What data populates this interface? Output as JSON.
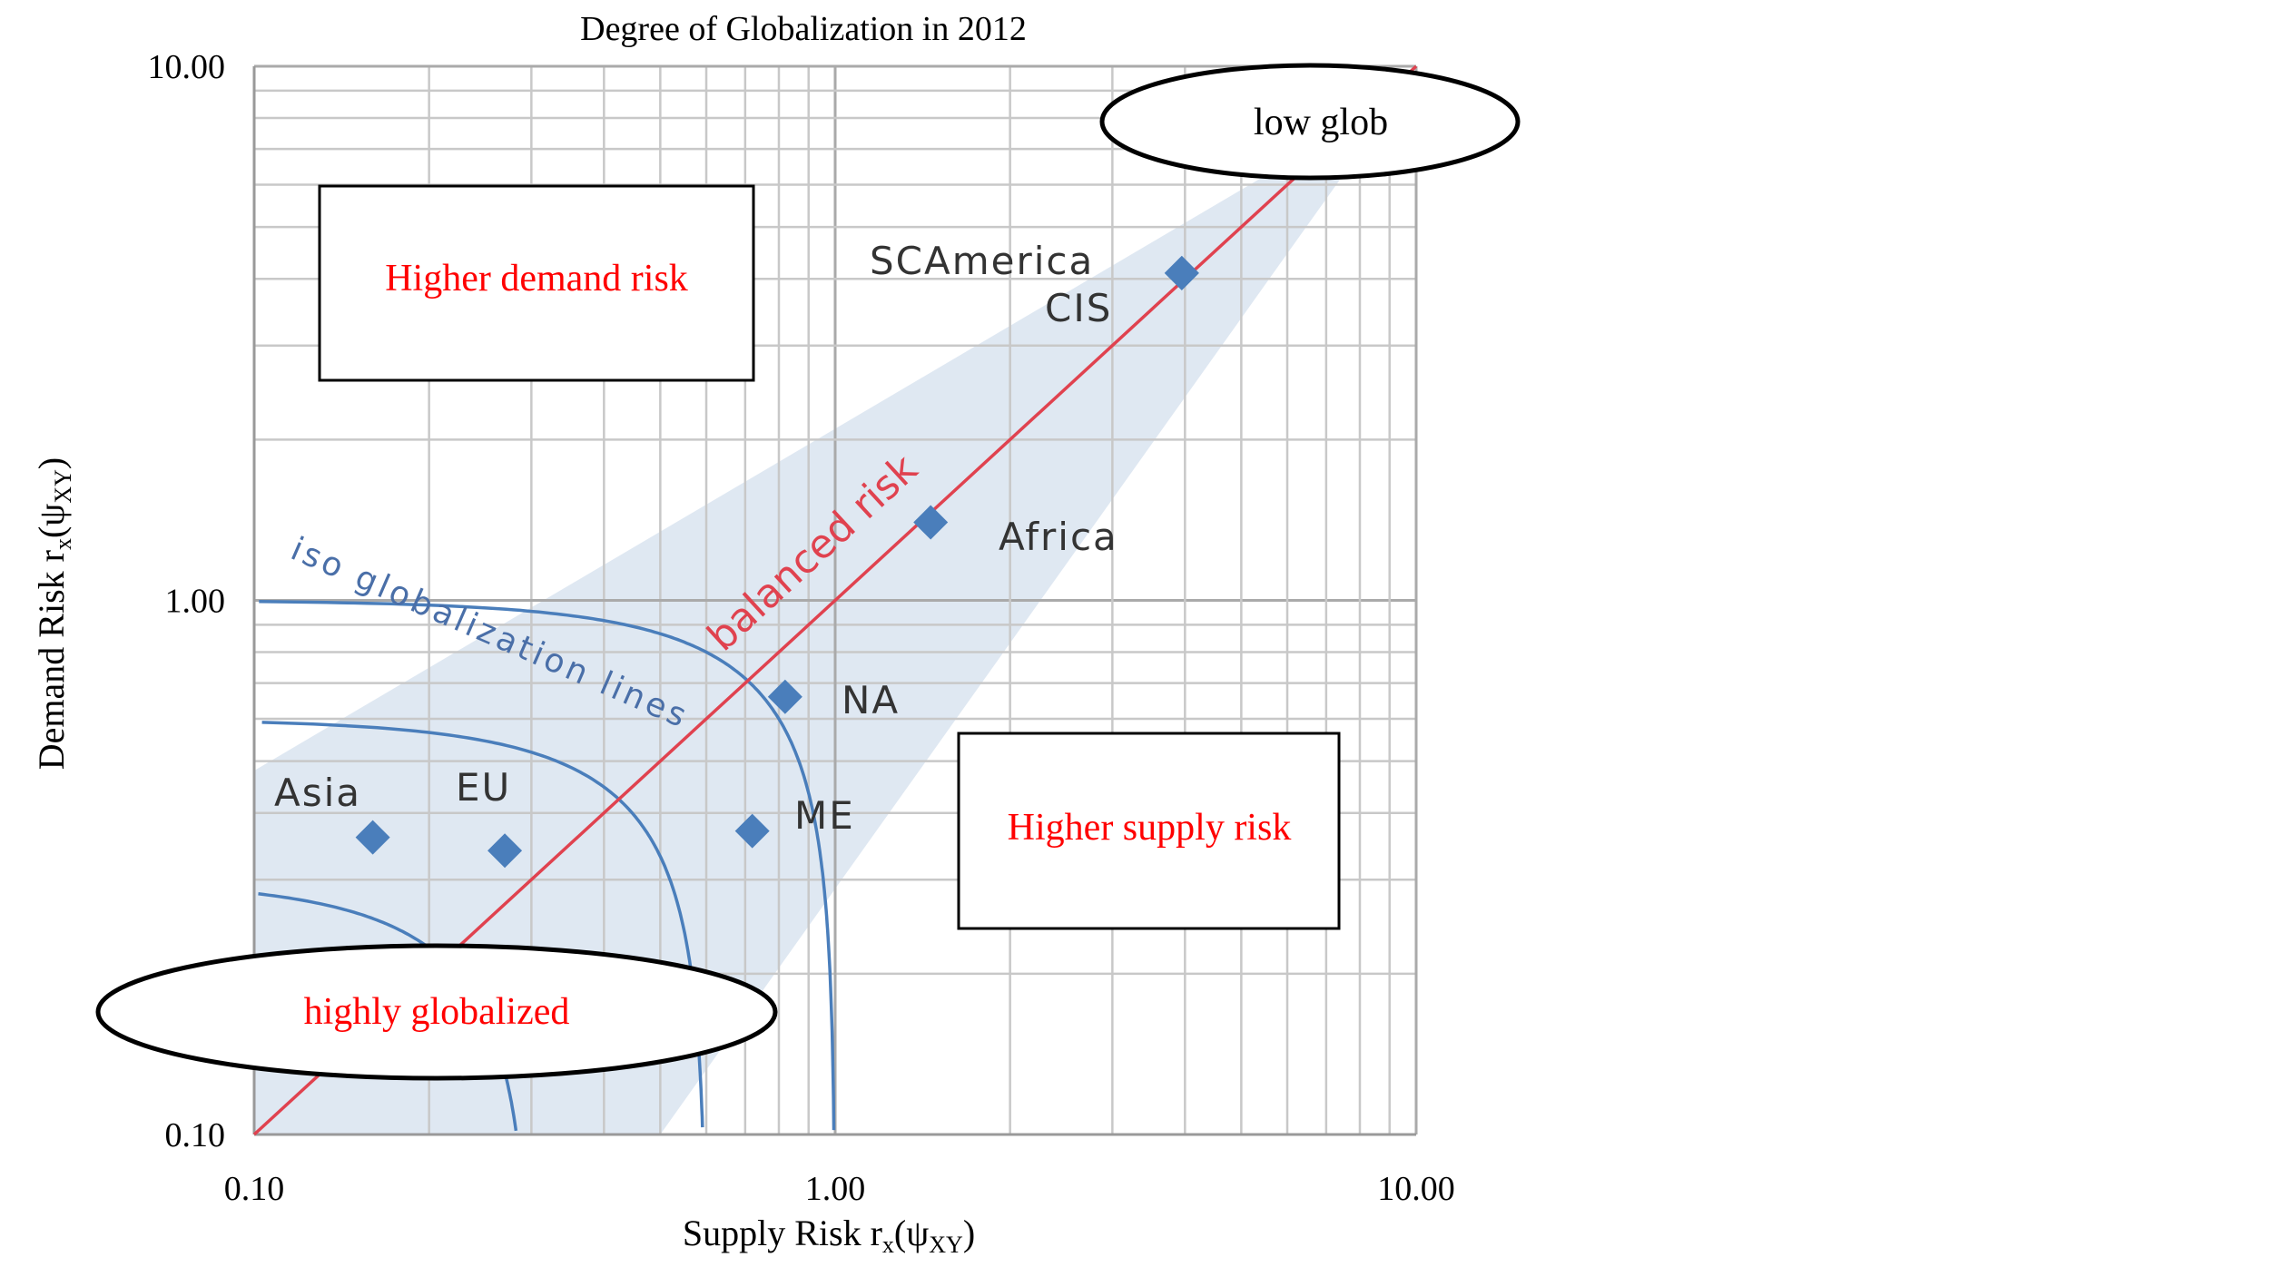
{
  "chart_data": {
    "type": "scatter",
    "title": "Degree of Globalization in 2012",
    "xlabel": {
      "main": "Supply Risk r",
      "sub1": "x",
      "mid": "(ψ",
      "sub2": "XY",
      "end": ")"
    },
    "ylabel": {
      "main": "Demand Risk r",
      "sub1": "x",
      "mid": "(ψ",
      "sub2": "XY",
      "end": ")"
    },
    "xscale": "log",
    "yscale": "log",
    "xlim": [
      0.1,
      10
    ],
    "ylim": [
      0.1,
      10
    ],
    "xticks": [
      "0.10",
      "1.00",
      "10.00"
    ],
    "yticks": [
      "0.10",
      "1.00",
      "10.00"
    ],
    "grid": true,
    "colors": {
      "points": "#4a7ebb",
      "balanced_line": "#e0424f",
      "iso_lines": "#4a7ebb",
      "band": "#dbe5f1",
      "annotation_text": "#ff0000",
      "grid": "#c8c8c8"
    },
    "points": [
      {
        "label": "Asia",
        "x": 0.16,
        "y": 0.36
      },
      {
        "label": "EU",
        "x": 0.27,
        "y": 0.34
      },
      {
        "label": "ME",
        "x": 0.72,
        "y": 0.37
      },
      {
        "label": "NA",
        "x": 0.82,
        "y": 0.66
      },
      {
        "label": "Africa",
        "x": 1.46,
        "y": 1.4
      },
      {
        "label": "SCAmerica",
        "x": 3.95,
        "y": 4.1
      },
      {
        "label": "CIS",
        "x": 3.95,
        "y": 4.1
      }
    ],
    "balanced_line": {
      "label": "balanced risk",
      "from": [
        0.1,
        0.1
      ],
      "to": [
        10,
        10
      ]
    },
    "iso_lines": {
      "label": "iso globalization lines",
      "radii": [
        0.3,
        0.6,
        1.0
      ]
    },
    "band": [
      [
        0.1,
        0.1
      ],
      [
        0.1,
        0.48
      ],
      [
        6.0,
        6.6
      ],
      [
        7.6,
        6.4
      ],
      [
        0.5,
        0.1
      ]
    ],
    "annotations": {
      "higher_demand": "Higher demand risk",
      "higher_supply": "Higher supply risk",
      "low_glob": "low glob",
      "highly_globalized": "highly globalized"
    }
  }
}
